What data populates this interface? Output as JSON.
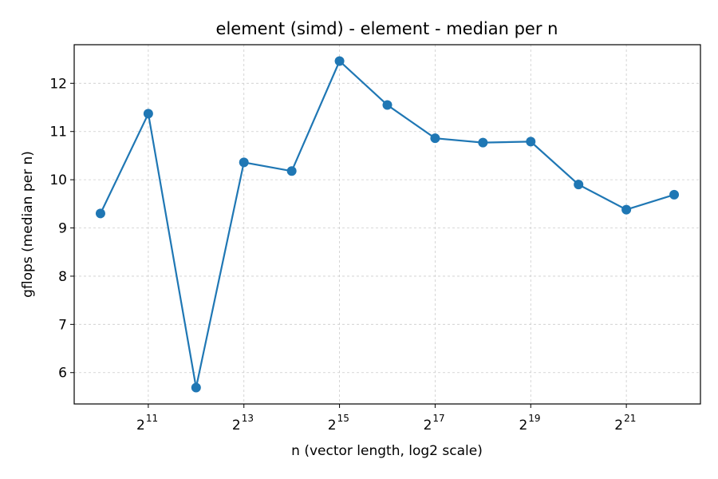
{
  "chart_data": {
    "type": "line",
    "title": "element (simd) - element - median per n",
    "xlabel": "n (vector length, log2 scale)",
    "ylabel": "gflops (median per n)",
    "x_scale": "log2",
    "x_exponents": [
      10,
      11,
      12,
      13,
      14,
      15,
      16,
      17,
      18,
      19,
      20,
      21,
      22
    ],
    "series": [
      {
        "values": [
          9.3,
          11.37,
          5.69,
          10.36,
          10.18,
          12.46,
          11.55,
          10.86,
          10.77,
          10.79,
          9.9,
          9.38,
          9.69
        ],
        "color": "#1f77b4"
      }
    ],
    "xticks": [
      {
        "base": "2",
        "exp": "11",
        "value": 11
      },
      {
        "base": "2",
        "exp": "13",
        "value": 13
      },
      {
        "base": "2",
        "exp": "15",
        "value": 15
      },
      {
        "base": "2",
        "exp": "17",
        "value": 17
      },
      {
        "base": "2",
        "exp": "19",
        "value": 19
      },
      {
        "base": "2",
        "exp": "21",
        "value": 21
      }
    ],
    "yticks": [
      "6",
      "7",
      "8",
      "9",
      "10",
      "11",
      "12"
    ],
    "xlim": [
      9.45,
      22.55
    ],
    "ylim": [
      5.35,
      12.8
    ],
    "grid": true
  }
}
